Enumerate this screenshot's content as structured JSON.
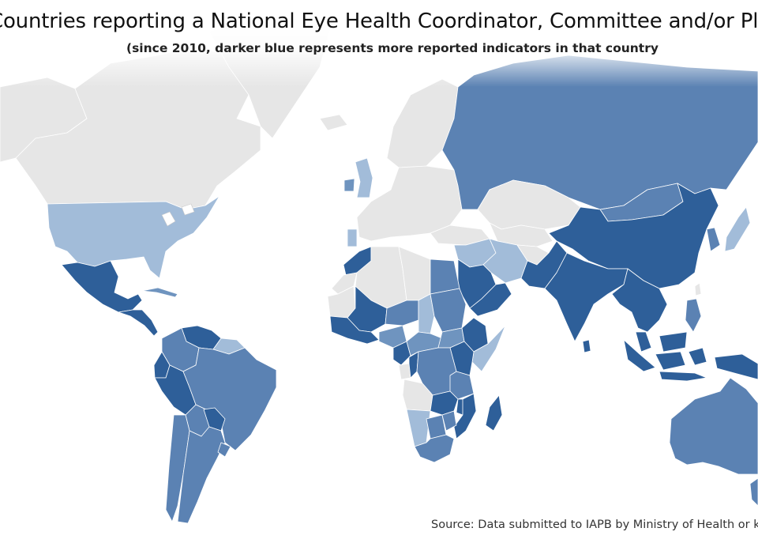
{
  "title": "Countries reporting a National Eye Health Coordinator, Committee and/or Plan",
  "subtitle": "(since 2010, darker blue represents more reported indicators in that country",
  "source": "Source: Data submitted to IAPB by Ministry of Health or key",
  "colors": {
    "no_data": "#e6e6e6",
    "level_1": "#a2bcd9",
    "level_2": "#6f94bf",
    "level_3": "#5b82b3",
    "level_4": "#2e5f99",
    "ocean": "#ffffff"
  },
  "regions": [
    {
      "name": "canada",
      "level": "no_data"
    },
    {
      "name": "greenland",
      "level": "no_data"
    },
    {
      "name": "alaska",
      "level": "no_data"
    },
    {
      "name": "united-states",
      "level": "level_1"
    },
    {
      "name": "mexico",
      "level": "level_4"
    },
    {
      "name": "central-america",
      "level": "level_4"
    },
    {
      "name": "cuba",
      "level": "level_2"
    },
    {
      "name": "venezuela",
      "level": "level_4"
    },
    {
      "name": "colombia",
      "level": "level_3"
    },
    {
      "name": "ecuador",
      "level": "level_4"
    },
    {
      "name": "peru",
      "level": "level_4"
    },
    {
      "name": "brazil",
      "level": "level_3"
    },
    {
      "name": "bolivia",
      "level": "level_3"
    },
    {
      "name": "paraguay",
      "level": "level_4"
    },
    {
      "name": "chile",
      "level": "level_3"
    },
    {
      "name": "argentina",
      "level": "level_3"
    },
    {
      "name": "uruguay",
      "level": "level_3"
    },
    {
      "name": "guianas",
      "level": "level_1"
    },
    {
      "name": "iceland",
      "level": "no_data"
    },
    {
      "name": "united-kingdom",
      "level": "level_1"
    },
    {
      "name": "ireland",
      "level": "level_2"
    },
    {
      "name": "scandinavia",
      "level": "no_data"
    },
    {
      "name": "europe",
      "level": "no_data"
    },
    {
      "name": "portugal",
      "level": "level_1"
    },
    {
      "name": "russia",
      "level": "level_3"
    },
    {
      "name": "kazakhstan",
      "level": "no_data"
    },
    {
      "name": "mongolia",
      "level": "level_3"
    },
    {
      "name": "china",
      "level": "level_4"
    },
    {
      "name": "turkey",
      "level": "no_data"
    },
    {
      "name": "middle-east",
      "level": "level_1"
    },
    {
      "name": "iran",
      "level": "level_1"
    },
    {
      "name": "saudi-arabia",
      "level": "level_4"
    },
    {
      "name": "yemen-oman",
      "level": "level_4"
    },
    {
      "name": "central-asia",
      "level": "no_data"
    },
    {
      "name": "afghanistan",
      "level": "no_data"
    },
    {
      "name": "pakistan",
      "level": "level_4"
    },
    {
      "name": "india",
      "level": "level_4"
    },
    {
      "name": "sri-lanka",
      "level": "level_4"
    },
    {
      "name": "southeast-asia",
      "level": "level_4"
    },
    {
      "name": "malaysia",
      "level": "level_4"
    },
    {
      "name": "indonesia",
      "level": "level_4"
    },
    {
      "name": "philippines",
      "level": "level_3"
    },
    {
      "name": "korea",
      "level": "level_3"
    },
    {
      "name": "japan",
      "level": "level_1"
    },
    {
      "name": "taiwan",
      "level": "no_data"
    },
    {
      "name": "papua",
      "level": "level_4"
    },
    {
      "name": "australia",
      "level": "level_3"
    },
    {
      "name": "new-zealand",
      "level": "level_3"
    },
    {
      "name": "morocco",
      "level": "level_4"
    },
    {
      "name": "algeria",
      "level": "no_data"
    },
    {
      "name": "libya",
      "level": "no_data"
    },
    {
      "name": "egypt",
      "level": "level_3"
    },
    {
      "name": "western-sahara",
      "level": "no_data"
    },
    {
      "name": "mauritania",
      "level": "no_data"
    },
    {
      "name": "mali",
      "level": "level_4"
    },
    {
      "name": "niger",
      "level": "level_3"
    },
    {
      "name": "chad",
      "level": "level_1"
    },
    {
      "name": "sudan",
      "level": "level_3"
    },
    {
      "name": "ethiopia",
      "level": "level_4"
    },
    {
      "name": "somalia",
      "level": "level_1"
    },
    {
      "name": "west-africa",
      "level": "level_4"
    },
    {
      "name": "nigeria",
      "level": "level_2"
    },
    {
      "name": "cameroon",
      "level": "level_4"
    },
    {
      "name": "central-african-republic",
      "level": "level_2"
    },
    {
      "name": "south-sudan",
      "level": "level_2"
    },
    {
      "name": "kenya",
      "level": "level_4"
    },
    {
      "name": "dr-congo",
      "level": "level_3"
    },
    {
      "name": "congo",
      "level": "level_4"
    },
    {
      "name": "gabon",
      "level": "no_data"
    },
    {
      "name": "tanzania",
      "level": "level_3"
    },
    {
      "name": "angola",
      "level": "no_data"
    },
    {
      "name": "zambia",
      "level": "level_4"
    },
    {
      "name": "mozambique",
      "level": "level_4"
    },
    {
      "name": "malawi",
      "level": "level_4"
    },
    {
      "name": "namibia",
      "level": "level_1"
    },
    {
      "name": "botswana",
      "level": "level_3"
    },
    {
      "name": "zimbabwe",
      "level": "level_3"
    },
    {
      "name": "south-africa",
      "level": "level_3"
    },
    {
      "name": "madagascar",
      "level": "level_4"
    }
  ]
}
